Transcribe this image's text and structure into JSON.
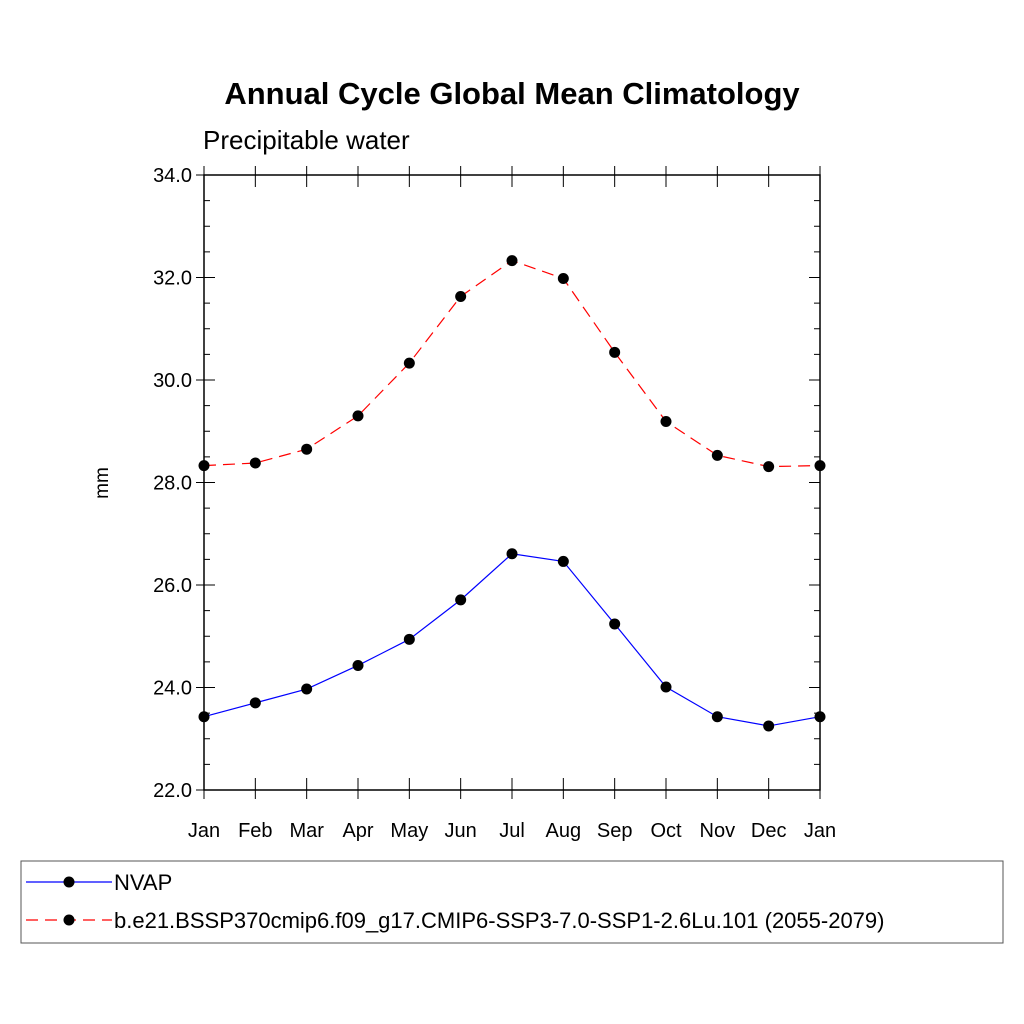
{
  "chart_data": {
    "type": "line",
    "title": "Annual Cycle Global Mean Climatology",
    "subtitle": "Precipitable water",
    "xlabel": "",
    "ylabel": "mm",
    "ylim": [
      22.0,
      34.0
    ],
    "yticks": [
      "22.0",
      "24.0",
      "26.0",
      "28.0",
      "30.0",
      "32.0",
      "34.0"
    ],
    "categories": [
      "Jan",
      "Feb",
      "Mar",
      "Apr",
      "May",
      "Jun",
      "Jul",
      "Aug",
      "Sep",
      "Oct",
      "Nov",
      "Dec",
      "Jan"
    ],
    "grid": false,
    "legend_position": "bottom",
    "series": [
      {
        "name": "NVAP",
        "color": "#0000ff",
        "dash": "solid",
        "values": [
          23.43,
          23.7,
          23.97,
          24.43,
          24.94,
          25.71,
          26.61,
          26.46,
          25.24,
          24.01,
          23.43,
          23.25,
          23.43
        ]
      },
      {
        "name": "b.e21.BSSP370cmip6.f09_g17.CMIP6-SSP3-7.0-SSP1-2.6Lu.101 (2055-2079)",
        "color": "#ff0000",
        "dash": "dashed",
        "values": [
          28.33,
          28.38,
          28.65,
          29.3,
          30.33,
          31.63,
          32.33,
          31.98,
          30.54,
          29.19,
          28.53,
          28.31,
          28.33
        ]
      }
    ]
  }
}
